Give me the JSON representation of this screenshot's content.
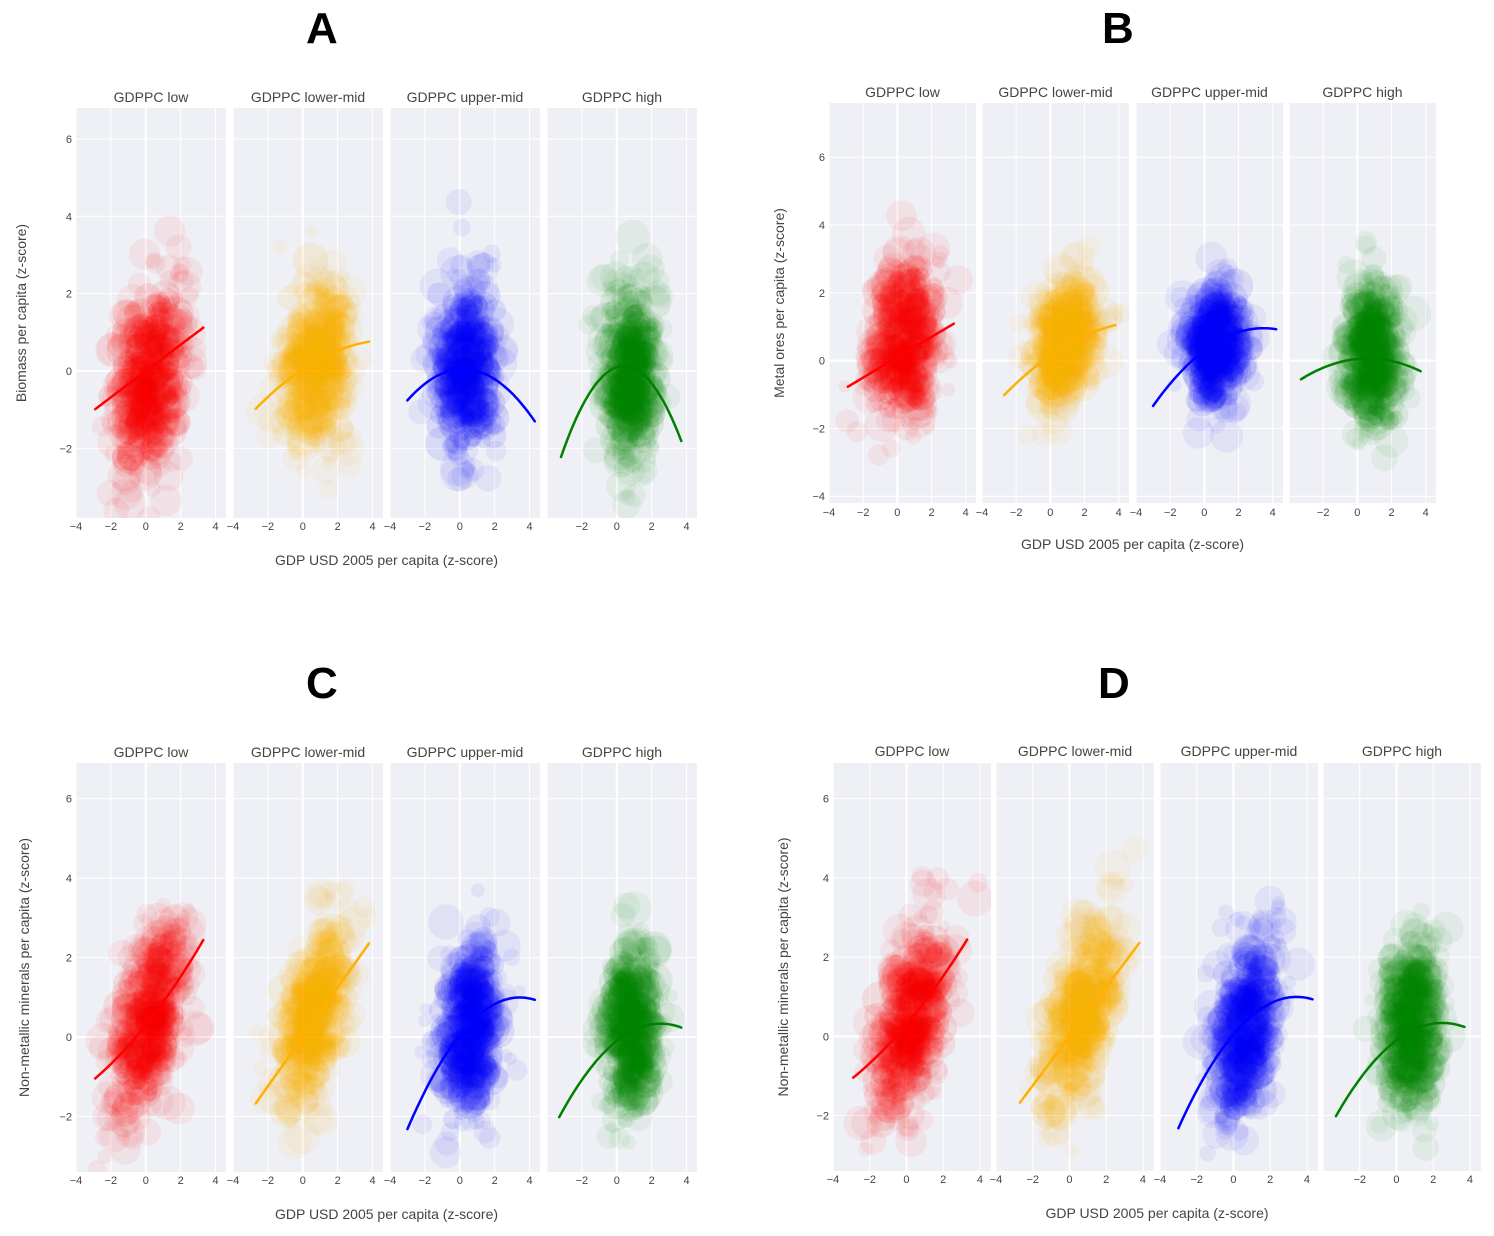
{
  "figure": {
    "colors": {
      "low": "#ff0000",
      "lower_mid": "#ffb000",
      "upper_mid": "#0000ff",
      "high": "#008000",
      "plot_bg": "#eef0f5",
      "grid": "#ffffff",
      "tick_text": "#444444",
      "title_text": "#2a3f5f"
    }
  },
  "chart_data": [
    {
      "panel": "A",
      "type": "scatter",
      "title": "A",
      "xlabel": "GDP USD 2005 per capita (z-score)",
      "ylabel": "Biomass per capita (z-score)",
      "xlim": [
        -4,
        4.6
      ],
      "ylim": [
        -3.8,
        6.8
      ],
      "x_ticks": [
        -4,
        -2,
        0,
        2,
        4
      ],
      "y_ticks": [
        -2,
        0,
        2,
        4,
        6
      ],
      "grid": true,
      "facets": [
        {
          "name": "GDPPC low",
          "color_key": "low",
          "cloud": {
            "cx": 0.2,
            "cy": -0.2,
            "sx": 1.0,
            "sy": 1.2,
            "slope": 0.35,
            "seed": 11
          },
          "fit": {
            "x_range": [
              -2.9,
              3.3
            ],
            "poly": [
              0.0,
              0.34,
              0.0
            ]
          }
        },
        {
          "name": "GDPPC lower-mid",
          "color_key": "lower_mid",
          "cloud": {
            "cx": 0.7,
            "cy": 0.2,
            "sx": 1.0,
            "sy": 1.1,
            "slope": 0.2,
            "seed": 12
          },
          "fit": {
            "x_range": [
              -2.7,
              3.8
            ],
            "poly": [
              0.05,
              0.3,
              -0.03
            ]
          }
        },
        {
          "name": "GDPPC upper-mid",
          "color_key": "upper_mid",
          "cloud": {
            "cx": 0.4,
            "cy": 0.1,
            "sx": 0.9,
            "sy": 1.1,
            "slope": 0.0,
            "seed": 13
          },
          "fit": {
            "x_range": [
              -3.0,
              4.3
            ],
            "poly": [
              0.05,
              0.03,
              -0.08
            ]
          }
        },
        {
          "name": "GDPPC high",
          "color_key": "high",
          "cloud": {
            "cx": 0.8,
            "cy": 0.0,
            "sx": 0.8,
            "sy": 1.1,
            "slope": 0.0,
            "seed": 14
          },
          "fit": {
            "x_range": [
              -3.2,
              3.7
            ],
            "poly": [
              0.1,
              0.15,
              -0.18
            ]
          }
        }
      ]
    },
    {
      "panel": "B",
      "type": "scatter",
      "title": "B",
      "xlabel": "GDP USD 2005 per capita (z-score)",
      "ylabel": "Metal ores per capita (z-score)",
      "xlim": [
        -4,
        4.6
      ],
      "ylim": [
        -4.2,
        7.6
      ],
      "x_ticks": [
        -4,
        -2,
        0,
        2,
        4
      ],
      "y_ticks": [
        -4,
        -2,
        0,
        2,
        4,
        6
      ],
      "grid": true,
      "facets": [
        {
          "name": "GDPPC low",
          "color_key": "low",
          "cloud": {
            "cx": 0.4,
            "cy": 0.6,
            "sx": 1.0,
            "sy": 1.2,
            "slope": 0.2,
            "seed": 21
          },
          "fit": {
            "x_range": [
              -2.9,
              3.3
            ],
            "poly": [
              0.1,
              0.3,
              0.0
            ]
          }
        },
        {
          "name": "GDPPC lower-mid",
          "color_key": "lower_mid",
          "cloud": {
            "cx": 0.8,
            "cy": 0.5,
            "sx": 1.0,
            "sy": 0.9,
            "slope": 0.2,
            "seed": 22
          },
          "fit": {
            "x_range": [
              -2.7,
              3.8
            ],
            "poly": [
              0.15,
              0.35,
              -0.03
            ]
          }
        },
        {
          "name": "GDPPC upper-mid",
          "color_key": "upper_mid",
          "cloud": {
            "cx": 0.6,
            "cy": 0.4,
            "sx": 0.9,
            "sy": 0.9,
            "slope": 0.15,
            "seed": 23
          },
          "fit": {
            "x_range": [
              -3.0,
              4.2
            ],
            "poly": [
              0.3,
              0.38,
              -0.055
            ]
          }
        },
        {
          "name": "GDPPC high",
          "color_key": "high",
          "cloud": {
            "cx": 0.8,
            "cy": 0.1,
            "sx": 0.8,
            "sy": 1.1,
            "slope": 0.0,
            "seed": 24
          },
          "fit": {
            "x_range": [
              -3.3,
              3.7
            ],
            "poly": [
              0.05,
              0.05,
              -0.04
            ]
          }
        }
      ]
    },
    {
      "panel": "C",
      "type": "scatter",
      "title": "C",
      "xlabel": "GDP USD 2005 per capita (z-score)",
      "ylabel": "Non-metallic minerals per capita (z-score)",
      "xlim": [
        -4,
        4.6
      ],
      "ylim": [
        -3.4,
        6.9
      ],
      "x_ticks": [
        -4,
        -2,
        0,
        2,
        4
      ],
      "y_ticks": [
        -2,
        0,
        2,
        4,
        6
      ],
      "grid": true,
      "facets": [
        {
          "name": "GDPPC low",
          "color_key": "low",
          "cloud": {
            "cx": 0.2,
            "cy": 0.4,
            "sx": 1.0,
            "sy": 1.0,
            "slope": 0.6,
            "seed": 31
          },
          "fit": {
            "x_range": [
              -2.9,
              3.3
            ],
            "poly": [
              0.3,
              0.55,
              0.03
            ]
          }
        },
        {
          "name": "GDPPC lower-mid",
          "color_key": "lower_mid",
          "cloud": {
            "cx": 0.6,
            "cy": 0.5,
            "sx": 1.0,
            "sy": 1.0,
            "slope": 0.6,
            "seed": 32
          },
          "fit": {
            "x_range": [
              -2.7,
              3.8
            ],
            "poly": [
              0.0,
              0.62,
              0.0
            ]
          }
        },
        {
          "name": "GDPPC upper-mid",
          "color_key": "upper_mid",
          "cloud": {
            "cx": 0.6,
            "cy": 0.2,
            "sx": 0.9,
            "sy": 1.1,
            "slope": 0.4,
            "seed": 33
          },
          "fit": {
            "x_range": [
              -3.0,
              4.3
            ],
            "poly": [
              0.05,
              0.55,
              -0.08
            ]
          }
        },
        {
          "name": "GDPPC high",
          "color_key": "high",
          "cloud": {
            "cx": 0.8,
            "cy": 0.2,
            "sx": 0.8,
            "sy": 1.1,
            "slope": 0.2,
            "seed": 34
          },
          "fit": {
            "x_range": [
              -3.3,
              3.7
            ],
            "poly": [
              -0.1,
              0.35,
              -0.07
            ]
          }
        }
      ]
    },
    {
      "panel": "D",
      "type": "scatter",
      "title": "D",
      "xlabel": "GDP USD 2005 per capita (z-score)",
      "ylabel": "Non-metallic minerals per capita (z-score)",
      "xlim": [
        -4,
        4.6
      ],
      "ylim": [
        -3.4,
        6.9
      ],
      "x_ticks": [
        -4,
        -2,
        0,
        2,
        4
      ],
      "y_ticks": [
        -2,
        0,
        2,
        4,
        6
      ],
      "grid": true,
      "facets": [
        {
          "name": "GDPPC low",
          "color_key": "low",
          "cloud": {
            "cx": 0.2,
            "cy": 0.4,
            "sx": 1.0,
            "sy": 1.0,
            "slope": 0.6,
            "seed": 41
          },
          "fit": {
            "x_range": [
              -2.9,
              3.3
            ],
            "poly": [
              0.3,
              0.55,
              0.03
            ]
          }
        },
        {
          "name": "GDPPC lower-mid",
          "color_key": "lower_mid",
          "cloud": {
            "cx": 0.6,
            "cy": 0.5,
            "sx": 1.0,
            "sy": 1.0,
            "slope": 0.6,
            "seed": 42
          },
          "fit": {
            "x_range": [
              -2.7,
              3.8
            ],
            "poly": [
              0.0,
              0.62,
              0.0
            ]
          }
        },
        {
          "name": "GDPPC upper-mid",
          "color_key": "upper_mid",
          "cloud": {
            "cx": 0.6,
            "cy": 0.2,
            "sx": 0.9,
            "sy": 1.1,
            "slope": 0.4,
            "seed": 43
          },
          "fit": {
            "x_range": [
              -3.0,
              4.3
            ],
            "poly": [
              0.05,
              0.55,
              -0.08
            ]
          }
        },
        {
          "name": "GDPPC high",
          "color_key": "high",
          "cloud": {
            "cx": 0.8,
            "cy": 0.2,
            "sx": 0.8,
            "sy": 1.1,
            "slope": 0.2,
            "seed": 44
          },
          "fit": {
            "x_range": [
              -3.3,
              3.7
            ],
            "poly": [
              -0.1,
              0.35,
              -0.07
            ]
          }
        }
      ]
    }
  ]
}
